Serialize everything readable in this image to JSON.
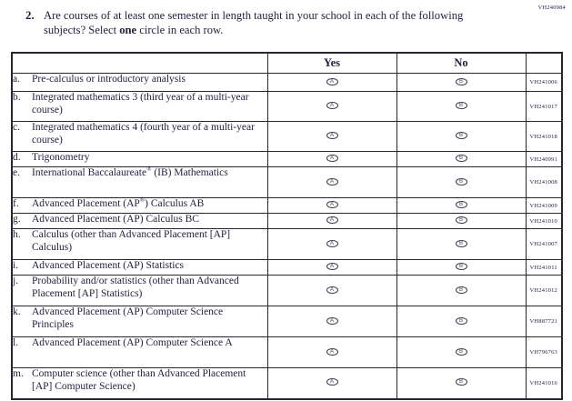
{
  "page": {
    "form_code": "VH240984",
    "question": {
      "number": "2.",
      "text_before_bold": "Are courses of at least one semester in length taught in your school in each of the following subjects? Select ",
      "bold_word": "one",
      "text_after_bold": " circle in each row."
    }
  },
  "table": {
    "headers": {
      "subject": "",
      "yes": "Yes",
      "no": "No",
      "code": ""
    },
    "options": [
      {
        "label": "Yes",
        "bubble_letter": "A"
      },
      {
        "label": "No",
        "bubble_letter": "B"
      }
    ],
    "rows": [
      {
        "letter": "a.",
        "text": "Pre-calculus or introductory analysis",
        "code": "VH241006"
      },
      {
        "letter": "b.",
        "text": "Integrated mathematics 3 (third year of a multi-year course)",
        "code": "VH241017"
      },
      {
        "letter": "c.",
        "text": "Integrated mathematics 4 (fourth year of a multi-year course)",
        "code": "VH241018"
      },
      {
        "letter": "d.",
        "text": "Trigonometry",
        "code": "VH240991"
      },
      {
        "letter": "e.",
        "text": "International Baccalaureate® (IB) Mathematics",
        "code": "VH241008"
      },
      {
        "letter": "f.",
        "text": "Advanced Placement (AP®) Calculus AB",
        "code": "VH241009"
      },
      {
        "letter": "g.",
        "text": "Advanced Placement (AP) Calculus BC",
        "code": "VH241010"
      },
      {
        "letter": "h.",
        "text": "Calculus (other than Advanced Placement [AP] Calculus)",
        "code": "VH241007"
      },
      {
        "letter": "i.",
        "text": "Advanced Placement (AP) Statistics",
        "code": "VH241011"
      },
      {
        "letter": "j.",
        "text": "Probability and/or statistics (other than Advanced Placement [AP] Statistics)",
        "code": "VH241012"
      },
      {
        "letter": "k.",
        "text": "Advanced Placement (AP) Computer Science Principles",
        "code": "VH887721"
      },
      {
        "letter": "l.",
        "text": "Advanced Placement (AP) Computer Science A",
        "code": "VH796763"
      },
      {
        "letter": "m.",
        "text": "Computer science (other than Advanced Placement [AP] Computer Science)",
        "code": "VH241016"
      }
    ]
  }
}
